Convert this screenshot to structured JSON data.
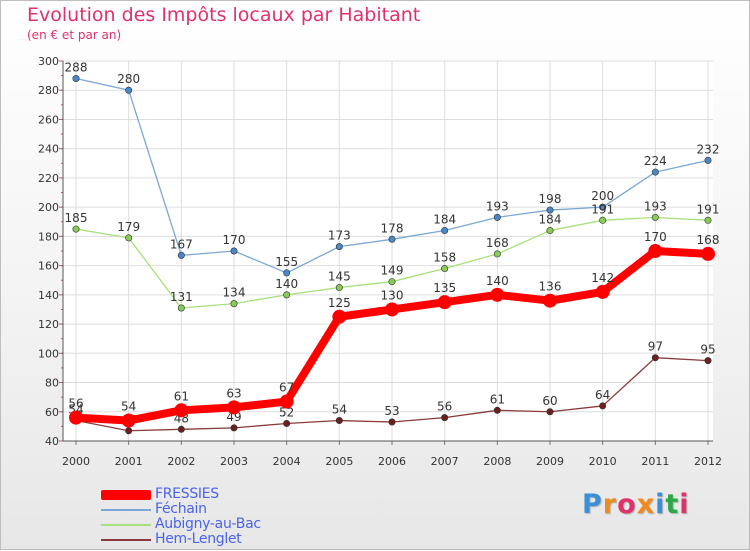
{
  "header": {
    "title": "Evolution des Impôts locaux par Habitant",
    "subtitle": "(en € et par an)"
  },
  "brand": {
    "name": "Proxiti",
    "letters": [
      "P",
      "r",
      "o",
      "x",
      "i",
      "t",
      "i"
    ],
    "colors": [
      "#3b8fd8",
      "#f08a1c",
      "#e0316d",
      "#f08a1c",
      "#3b8fd8",
      "#2aa84a",
      "#e0316d"
    ]
  },
  "chart_data": {
    "type": "line",
    "title": "Evolution des Impôts locaux par Habitant",
    "subtitle": "(en € et par an)",
    "xlabel": "",
    "ylabel": "",
    "categories": [
      "2000",
      "2001",
      "2002",
      "2003",
      "2004",
      "2005",
      "2006",
      "2007",
      "2008",
      "2009",
      "2010",
      "2011",
      "2012"
    ],
    "ylim": [
      40,
      300
    ],
    "yticks": [
      40,
      60,
      80,
      100,
      120,
      140,
      160,
      180,
      200,
      220,
      240,
      260,
      280,
      300
    ],
    "grid": true,
    "legend_position": "bottom-left",
    "series": [
      {
        "name": "Féchain",
        "color": "#7aa7d6",
        "marker": "#4a86c8",
        "values": [
          288,
          280,
          167,
          170,
          155,
          173,
          178,
          184,
          193,
          198,
          200,
          224,
          232
        ]
      },
      {
        "name": "Aubigny-au-Bac",
        "color": "#a6e07a",
        "marker": "#86cc55",
        "values": [
          185,
          179,
          131,
          134,
          140,
          145,
          149,
          158,
          168,
          184,
          191,
          193,
          191
        ]
      },
      {
        "name": "Hem-Lenglet",
        "color": "#8a3a3a",
        "marker": "#6b1f1f",
        "values": [
          54,
          47,
          48,
          49,
          52,
          54,
          53,
          56,
          61,
          60,
          64,
          97,
          95
        ]
      },
      {
        "name": "FRESSIES",
        "color": "#ff0000",
        "marker": "#ff0000",
        "values": [
          56,
          54,
          61,
          63,
          67,
          125,
          130,
          135,
          140,
          136,
          142,
          170,
          168
        ]
      }
    ],
    "legend": [
      "FRESSIES",
      "Féchain",
      "Aubigny-au-Bac",
      "Hem-Lenglet"
    ]
  }
}
